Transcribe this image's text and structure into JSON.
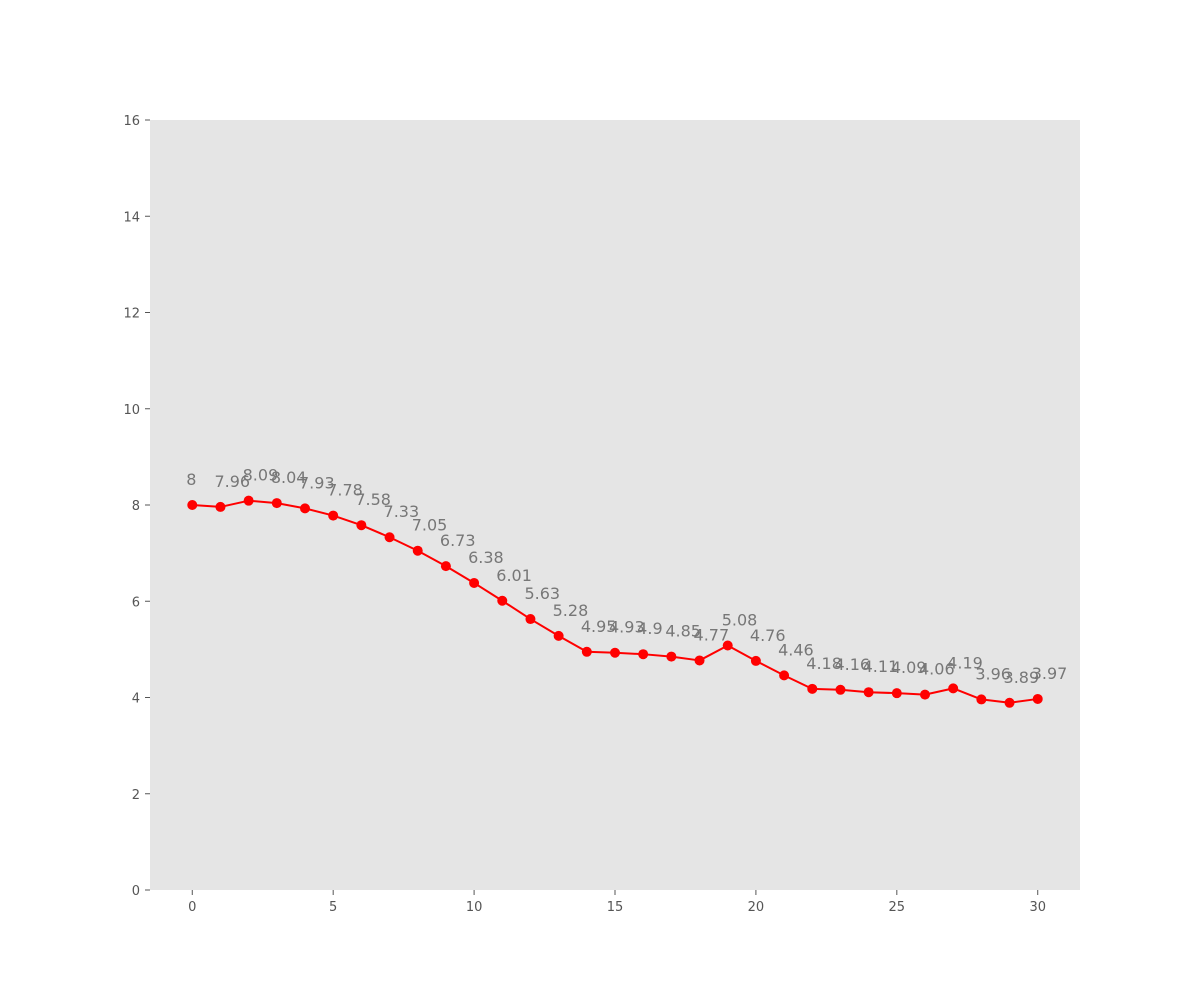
{
  "chart_data": {
    "type": "line",
    "title": "",
    "xlabel": "",
    "ylabel": "",
    "x": [
      0,
      1,
      2,
      3,
      4,
      5,
      6,
      7,
      8,
      9,
      10,
      11,
      12,
      13,
      14,
      15,
      16,
      17,
      18,
      19,
      20,
      21,
      22,
      23,
      24,
      25,
      26,
      27,
      28,
      29,
      30
    ],
    "series": [
      {
        "values": [
          8,
          7.96,
          8.09,
          8.04,
          7.93,
          7.78,
          7.58,
          7.33,
          7.05,
          6.73,
          6.38,
          6.01,
          5.63,
          5.28,
          4.95,
          4.93,
          4.9,
          4.85,
          4.77,
          5.08,
          4.76,
          4.46,
          4.18,
          4.16,
          4.11,
          4.09,
          4.06,
          4.19,
          3.96,
          3.89,
          3.97
        ],
        "labels": [
          "8",
          "7.96",
          "8.09",
          "8.04",
          "7.93",
          "7.78",
          "7.58",
          "7.33",
          "7.05",
          "6.73",
          "6.38",
          "6.01",
          "5.63",
          "5.28",
          "4.95",
          "4.93",
          "4.9",
          "4.85",
          "4.77",
          "5.08",
          "4.76",
          "4.46",
          "4.18",
          "4.16",
          "4.11",
          "4.09",
          "4.06",
          "4.19",
          "3.96",
          "3.89",
          "3.97"
        ],
        "color": "#ff0000",
        "marker": "circle"
      }
    ],
    "xlim": [
      -1.5,
      31.5
    ],
    "ylim": [
      0,
      16
    ],
    "xticks": [
      0,
      5,
      10,
      15,
      20,
      25,
      30
    ],
    "xtick_labels": [
      "0",
      "5",
      "10",
      "15",
      "20",
      "25",
      "30"
    ],
    "yticks": [
      0,
      2,
      4,
      6,
      8,
      10,
      12,
      14,
      16
    ],
    "ytick_labels": [
      "0",
      "2",
      "4",
      "6",
      "8",
      "10",
      "12",
      "14",
      "16"
    ],
    "grid": false,
    "legend": "none",
    "plot_background": "#e5e5e5",
    "label_color": "#777777"
  }
}
